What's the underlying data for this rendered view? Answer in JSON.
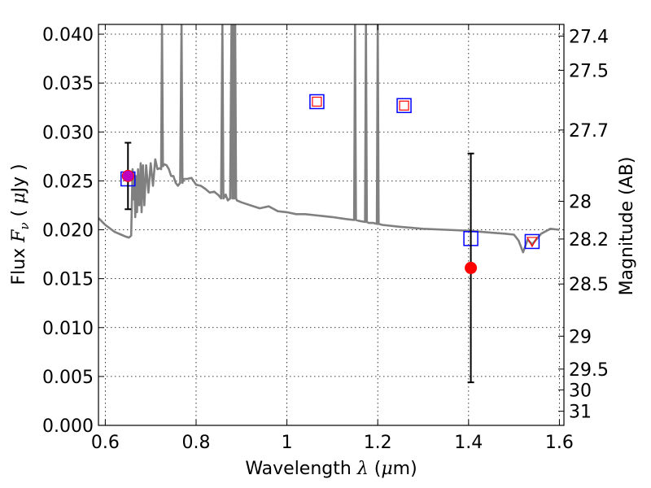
{
  "chart_data": {
    "type": "scatter",
    "xlabel": "Wavelength",
    "xlabel_symbol": "λ",
    "xlabel_unit_open": " (",
    "xlabel_unit_mu": "μ",
    "xlabel_unit_rest": "m)",
    "ylabel": "Flux",
    "ylabel_symbol_F": "F",
    "ylabel_symbol_nu": "ν",
    "ylabel_unit_open": "( ",
    "ylabel_unit_mu": "μ",
    "ylabel_unit_rest": "Jy )",
    "y2label": "Magnitude (AB)",
    "xlim": [
      0.585,
      1.61
    ],
    "ylim": [
      0.0,
      0.041
    ],
    "grid": true,
    "xticks": [
      {
        "value": 0.6,
        "label": "0.6"
      },
      {
        "value": 0.8,
        "label": "0.8"
      },
      {
        "value": 1.0,
        "label": "1"
      },
      {
        "value": 1.2,
        "label": "1.2"
      },
      {
        "value": 1.4,
        "label": "1.4"
      },
      {
        "value": 1.6,
        "label": "1.6"
      }
    ],
    "yticks": [
      {
        "value": 0.0,
        "label": "0.000"
      },
      {
        "value": 0.005,
        "label": "0.005"
      },
      {
        "value": 0.01,
        "label": "0.010"
      },
      {
        "value": 0.015,
        "label": "0.015"
      },
      {
        "value": 0.02,
        "label": "0.020"
      },
      {
        "value": 0.025,
        "label": "0.025"
      },
      {
        "value": 0.03,
        "label": "0.030"
      },
      {
        "value": 0.035,
        "label": "0.035"
      },
      {
        "value": 0.04,
        "label": "0.040"
      }
    ],
    "mag_ticks": [
      {
        "mag": 27.4,
        "label": "27.4"
      },
      {
        "mag": 27.5,
        "label": "27.5"
      },
      {
        "mag": 27.7,
        "label": "27.7"
      },
      {
        "mag": 28.0,
        "label": "28"
      },
      {
        "mag": 28.2,
        "label": "28.2"
      },
      {
        "mag": 28.5,
        "label": "28.5"
      },
      {
        "mag": 29.0,
        "label": "29"
      },
      {
        "mag": 29.5,
        "label": "29.5"
      },
      {
        "mag": 30.0,
        "label": "30"
      },
      {
        "mag": 31.0,
        "label": "31"
      }
    ],
    "series": [
      {
        "name": "model spectrum",
        "kind": "line",
        "color": "#808080",
        "x": [
          0.585,
          0.6,
          0.62,
          0.635,
          0.645,
          0.652,
          0.657,
          0.66,
          0.662,
          0.664,
          0.666,
          0.668,
          0.67,
          0.672,
          0.675,
          0.678,
          0.68,
          0.683,
          0.686,
          0.69,
          0.695,
          0.7,
          0.705,
          0.71,
          0.715,
          0.72,
          0.723,
          0.725,
          0.727,
          0.73,
          0.735,
          0.74,
          0.745,
          0.75,
          0.755,
          0.76,
          0.765,
          0.768,
          0.77,
          0.772,
          0.775,
          0.78,
          0.79,
          0.8,
          0.81,
          0.82,
          0.83,
          0.84,
          0.85,
          0.855,
          0.858,
          0.86,
          0.862,
          0.865,
          0.87,
          0.875,
          0.878,
          0.88,
          0.882,
          0.884,
          0.886,
          0.888,
          0.89,
          0.9,
          0.92,
          0.94,
          0.96,
          0.98,
          1.0,
          1.02,
          1.04,
          1.06,
          1.08,
          1.1,
          1.13,
          1.148,
          1.15,
          1.152,
          1.16,
          1.172,
          1.174,
          1.176,
          1.18,
          1.19,
          1.198,
          1.2,
          1.202,
          1.21,
          1.25,
          1.3,
          1.35,
          1.4,
          1.45,
          1.48,
          1.5,
          1.51,
          1.52,
          1.53,
          1.54,
          1.56,
          1.58,
          1.6
        ],
        "y": [
          0.0212,
          0.0205,
          0.0198,
          0.0195,
          0.0193,
          0.0192,
          0.0194,
          0.0262,
          0.0231,
          0.0258,
          0.0213,
          0.0255,
          0.0218,
          0.0262,
          0.0225,
          0.0268,
          0.0218,
          0.0266,
          0.0225,
          0.0266,
          0.0238,
          0.0268,
          0.0245,
          0.0272,
          0.0262,
          0.0263,
          0.0262,
          0.041,
          0.0265,
          0.0267,
          0.0266,
          0.0262,
          0.0255,
          0.0255,
          0.0248,
          0.0245,
          0.0248,
          0.041,
          0.0248,
          0.0252,
          0.0252,
          0.0252,
          0.0253,
          0.0246,
          0.0245,
          0.0242,
          0.0238,
          0.0239,
          0.0235,
          0.0232,
          0.041,
          0.0232,
          0.0233,
          0.0236,
          0.023,
          0.0232,
          0.041,
          0.0232,
          0.041,
          0.0232,
          0.041,
          0.0232,
          0.023,
          0.0228,
          0.0225,
          0.0222,
          0.0224,
          0.0219,
          0.0218,
          0.0216,
          0.0216,
          0.0215,
          0.0214,
          0.0213,
          0.0211,
          0.021,
          0.041,
          0.021,
          0.0209,
          0.0208,
          0.041,
          0.0208,
          0.0207,
          0.0207,
          0.0206,
          0.041,
          0.0206,
          0.0205,
          0.0203,
          0.0201,
          0.02,
          0.0199,
          0.0197,
          0.0196,
          0.0195,
          0.0189,
          0.0177,
          0.019,
          0.0185,
          0.0196,
          0.0201,
          0.02
        ]
      },
      {
        "name": "model photometry",
        "kind": "square",
        "color": "#0000ff",
        "x": [
          0.65,
          1.066,
          1.258,
          1.405,
          1.54
        ],
        "y": [
          0.0252,
          0.0331,
          0.0327,
          0.0191,
          0.0188
        ]
      },
      {
        "name": "upper limits",
        "kind": "small-square",
        "color": "#ff0000",
        "x": [
          1.066,
          1.258
        ],
        "y": [
          0.0331,
          0.0327
        ]
      },
      {
        "name": "upper limit triangle",
        "kind": "triangle-down",
        "color": "#ff0000",
        "x": [
          1.54
        ],
        "y": [
          0.0188
        ]
      },
      {
        "name": "observed photometry",
        "kind": "circle",
        "color": "#ff0000",
        "x": [
          0.65,
          1.405
        ],
        "y": [
          0.0255,
          0.0161
        ],
        "yerr_low": [
          0.0034,
          0.0117
        ],
        "yerr_high": [
          0.0034,
          0.0117
        ]
      },
      {
        "name": "overlap marker",
        "kind": "circle",
        "color": "#bf00bf",
        "x": [
          0.65
        ],
        "y": [
          0.0255
        ]
      }
    ]
  }
}
